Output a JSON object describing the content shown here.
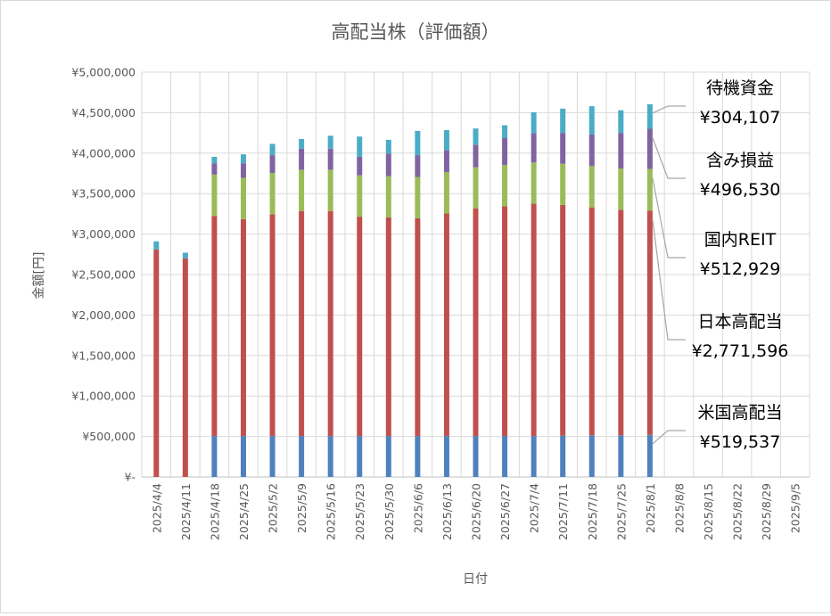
{
  "chart_data": {
    "type": "bar",
    "stacked": true,
    "title": "高配当株（評価額）",
    "xlabel": "日付",
    "ylabel": "金額[円]",
    "ylim": [
      0,
      5000000
    ],
    "grid": true,
    "legend": "none (series labelled by annotations on the right)",
    "y_ticks": [
      "¥-",
      "¥500,000",
      "¥1,000,000",
      "¥1,500,000",
      "¥2,000,000",
      "¥2,500,000",
      "¥3,000,000",
      "¥3,500,000",
      "¥4,000,000",
      "¥4,500,000",
      "¥5,000,000"
    ],
    "categories": [
      "2025/4/4",
      "2025/4/11",
      "2025/4/18",
      "2025/4/25",
      "2025/5/2",
      "2025/5/9",
      "2025/5/16",
      "2025/5/23",
      "2025/5/30",
      "2025/6/6",
      "2025/6/13",
      "2025/6/20",
      "2025/6/27",
      "2025/7/4",
      "2025/7/11",
      "2025/7/18",
      "2025/7/25",
      "2025/8/1",
      "2025/8/8",
      "2025/8/15",
      "2025/8/22",
      "2025/8/29",
      "2025/9/5"
    ],
    "series": [
      {
        "name": "米国高配当",
        "color": "#4f81bd",
        "values": [
          0,
          0,
          505000,
          505000,
          505000,
          505000,
          505000,
          505000,
          505000,
          505000,
          505000,
          505000,
          505000,
          505000,
          510000,
          515000,
          515000,
          519537,
          null,
          null,
          null,
          null,
          null
        ]
      },
      {
        "name": "日本高配当",
        "color": "#c0504d",
        "values": [
          2810000,
          2700000,
          2720000,
          2680000,
          2740000,
          2780000,
          2780000,
          2710000,
          2700000,
          2690000,
          2750000,
          2810000,
          2840000,
          2870000,
          2850000,
          2815000,
          2785000,
          2771596,
          null,
          null,
          null,
          null,
          null
        ]
      },
      {
        "name": "国内REIT",
        "color": "#9bbb59",
        "values": [
          0,
          0,
          510000,
          510000,
          510000,
          510000,
          510000,
          510000,
          510000,
          510000,
          510000,
          510000,
          510000,
          510000,
          510000,
          510000,
          510000,
          512929,
          null,
          null,
          null,
          null,
          null
        ]
      },
      {
        "name": "含み損益",
        "color": "#8064a2",
        "values": [
          0,
          0,
          140000,
          180000,
          220000,
          260000,
          260000,
          230000,
          280000,
          270000,
          270000,
          280000,
          330000,
          360000,
          380000,
          390000,
          440000,
          496530,
          null,
          null,
          null,
          null,
          null
        ]
      },
      {
        "name": "待機資金",
        "color": "#4bacc6",
        "values": [
          100000,
          70000,
          80000,
          110000,
          140000,
          120000,
          160000,
          250000,
          170000,
          300000,
          250000,
          200000,
          160000,
          260000,
          300000,
          350000,
          280000,
          304107,
          null,
          null,
          null,
          null,
          null
        ]
      }
    ],
    "annotations": [
      {
        "series": "待機資金",
        "label": "待機資金",
        "value": "¥304,107"
      },
      {
        "series": "含み損益",
        "label": "含み損益",
        "value": "¥496,530"
      },
      {
        "series": "国内REIT",
        "label": "国内REIT",
        "value": "¥512,929"
      },
      {
        "series": "日本高配当",
        "label": "日本高配当",
        "value": "¥2,771,596"
      },
      {
        "series": "米国高配当",
        "label": "米国高配当",
        "value": "¥519,537"
      }
    ]
  }
}
